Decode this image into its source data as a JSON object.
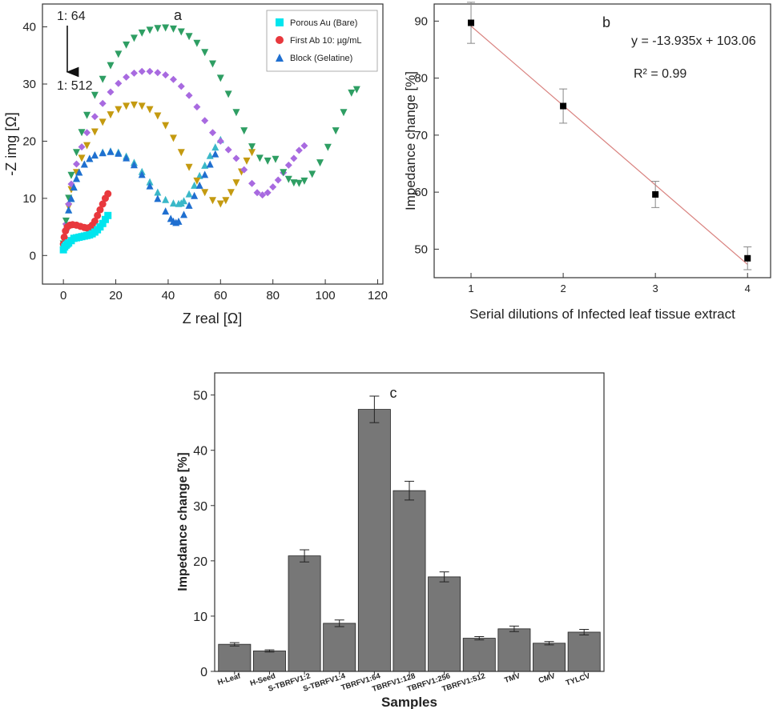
{
  "chart_data": [
    {
      "type": "scatter",
      "panel_label": "a",
      "xlabel": "Z real [Ω]",
      "ylabel": "-Z img [Ω]",
      "xlim": [
        -8,
        122
      ],
      "ylim": [
        -5,
        44
      ],
      "xticks": [
        0,
        20,
        40,
        60,
        80,
        100,
        120
      ],
      "yticks": [
        0,
        10,
        20,
        30,
        40
      ],
      "arrow_label_top": "1: 64",
      "arrow_label_bottom": "1: 512",
      "legend": [
        "Porous Au (Bare)",
        "First Ab 10: µg/mL",
        "Block (Gelatine)"
      ],
      "colors": {
        "bare": "#00e5ee",
        "ab": "#e8383d",
        "block": "#1f6fd0",
        "d64": "#2e9e63",
        "d128": "#a86ae0",
        "d256": "#c49a10",
        "d512": "#3ab8c8"
      },
      "series": [
        {
          "name": "Porous Au (Bare)",
          "marker": "square",
          "color": "#00e5ee",
          "x": [
            0,
            0.5,
            1,
            1.5,
            2,
            3,
            4,
            5,
            6,
            7,
            8,
            9,
            10,
            11,
            12,
            13,
            14,
            15,
            16,
            17
          ],
          "y": [
            1,
            1.5,
            1.8,
            2,
            2.2,
            2.6,
            3,
            3.1,
            3.2,
            3.3,
            3.4,
            3.5,
            3.6,
            3.8,
            4.1,
            4.5,
            5,
            5.6,
            6.3,
            7
          ]
        },
        {
          "name": "First Ab 10: µg/mL",
          "marker": "circle",
          "color": "#e8383d",
          "x": [
            0,
            0.3,
            0.8,
            1.5,
            2.5,
            3.5,
            5,
            6.5,
            8,
            9,
            10,
            11,
            12,
            13,
            14,
            15,
            16,
            17
          ],
          "y": [
            2,
            3.2,
            4.3,
            5,
            5.3,
            5.4,
            5.3,
            5.1,
            4.9,
            4.8,
            4.9,
            5.3,
            6,
            7,
            8,
            9,
            10,
            10.8
          ]
        },
        {
          "name": "Block (Gelatine)",
          "marker": "triangle-up",
          "color": "#1f6fd0",
          "x": [
            0,
            1,
            2,
            3,
            4,
            5,
            6,
            8,
            10,
            12,
            15,
            18,
            21,
            24,
            27,
            30,
            33,
            36,
            39,
            41,
            42,
            43,
            44,
            46,
            48,
            50,
            52,
            54,
            56,
            58
          ],
          "y": [
            2,
            5,
            8,
            10,
            12,
            13.5,
            14.6,
            16,
            17,
            17.6,
            18,
            18.2,
            17.9,
            17.1,
            15.9,
            14.2,
            12.2,
            10,
            7.8,
            6.5,
            6,
            5.8,
            6,
            7.2,
            8.8,
            10.5,
            12.3,
            14.2,
            16,
            17.8
          ]
        },
        {
          "name": "",
          "marker": "triangle-down",
          "color": "#2e9e63",
          "x": [
            0,
            1,
            2,
            3,
            5,
            7,
            9,
            12,
            15,
            18,
            21,
            24,
            27,
            30,
            33,
            36,
            39,
            42,
            45,
            48,
            51,
            54,
            57,
            60,
            63,
            66,
            69,
            72,
            75,
            78,
            81,
            84,
            86,
            88,
            90,
            92,
            95,
            98,
            101,
            104,
            107,
            110,
            112
          ],
          "y": [
            2,
            6,
            10,
            14,
            18,
            21.5,
            24.5,
            28,
            30.8,
            33.2,
            35.2,
            36.8,
            38,
            38.9,
            39.4,
            39.7,
            39.8,
            39.6,
            39.1,
            38.3,
            37.1,
            35.5,
            33.5,
            31,
            28.2,
            25,
            21.8,
            19,
            17,
            16.5,
            16.8,
            14.5,
            13.3,
            12.7,
            12.6,
            13,
            14.2,
            16.2,
            18.9,
            21.8,
            25,
            28.4,
            29
          ]
        },
        {
          "name": "",
          "marker": "diamond",
          "color": "#a86ae0",
          "x": [
            0,
            1,
            2,
            3,
            5,
            7,
            9,
            12,
            15,
            18,
            21,
            24,
            27,
            30,
            33,
            36,
            39,
            42,
            45,
            48,
            51,
            54,
            57,
            60,
            63,
            66,
            69,
            72,
            74,
            76,
            78,
            80,
            82,
            84,
            86,
            88,
            90,
            92
          ],
          "y": [
            2,
            5.5,
            9,
            12.5,
            16,
            19,
            21.5,
            24.3,
            26.6,
            28.6,
            30.1,
            31.2,
            31.9,
            32.2,
            32.2,
            32,
            31.6,
            30.8,
            29.6,
            28,
            26,
            23.6,
            21.5,
            20,
            18.5,
            17,
            15,
            12.6,
            11,
            10.6,
            11,
            12,
            13.2,
            14.5,
            15.8,
            17,
            18.4,
            19.2
          ]
        },
        {
          "name": "",
          "marker": "triangle-down",
          "color": "#c49a10",
          "x": [
            0,
            1,
            2,
            3,
            5,
            7,
            9,
            12,
            15,
            18,
            21,
            24,
            27,
            30,
            33,
            36,
            39,
            42,
            45,
            48,
            51,
            54,
            57,
            60,
            62,
            64,
            66,
            68,
            70,
            72
          ],
          "y": [
            2,
            5,
            8.5,
            11.5,
            14.5,
            17,
            19.2,
            21.6,
            23.3,
            24.6,
            25.5,
            26.1,
            26.3,
            26.1,
            25.5,
            24.4,
            22.7,
            20.5,
            18,
            15.4,
            13,
            11,
            9.6,
            9,
            9.6,
            11,
            12.7,
            14.6,
            16.5,
            18
          ]
        },
        {
          "name": "",
          "marker": "triangle-up",
          "color": "#3ab8c8",
          "x": [
            0,
            1,
            2,
            3,
            4,
            5,
            6,
            8,
            10,
            12,
            15,
            18,
            21,
            24,
            27,
            30,
            33,
            36,
            39,
            42,
            44,
            45,
            46,
            48,
            50,
            52,
            54,
            56,
            58,
            60
          ],
          "y": [
            2,
            5,
            8,
            10,
            12,
            13.5,
            14.6,
            16,
            17,
            17.6,
            18.1,
            18.3,
            18.1,
            17.4,
            16.3,
            14.7,
            12.9,
            11.1,
            9.8,
            9.2,
            9.1,
            9.2,
            9.6,
            10.8,
            12.3,
            14,
            15.8,
            17.5,
            19,
            20.3
          ]
        }
      ]
    },
    {
      "type": "scatter",
      "panel_label": "b",
      "xlabel": "Serial dilutions of Infected leaf tissue extract",
      "ylabel": "Impedance change [%]",
      "xlim": [
        0.6,
        4.25
      ],
      "ylim": [
        45,
        93
      ],
      "xticks": [
        1,
        2,
        3,
        4
      ],
      "yticks": [
        50,
        60,
        70,
        80,
        90
      ],
      "equation": "y = -13.935x + 103.06",
      "r2": "R² = 0.99",
      "fit": {
        "slope": -13.935,
        "intercept": 103.06,
        "color": "#d9827f"
      },
      "x": [
        1,
        2,
        3,
        4
      ],
      "y": [
        89.7,
        75.1,
        59.6,
        48.4
      ],
      "err": [
        3.6,
        3.0,
        2.3,
        2.0
      ]
    },
    {
      "type": "bar",
      "panel_label": "c",
      "xlabel": "Samples",
      "ylabel": "Impedance change [%]",
      "ylim": [
        0,
        54
      ],
      "yticks": [
        0,
        10,
        20,
        30,
        40,
        50
      ],
      "bar_color": "#777777",
      "categories": [
        "H-Leaf",
        "H-Seed",
        "S-TBRFV1:2",
        "S-TBRFV1:4",
        "TBRFV1:64",
        "TBRFV1:128",
        "TBRFV1:256",
        "TBRFV1:512",
        "TMV",
        "CMV",
        "TYLCV"
      ],
      "values": [
        4.9,
        3.7,
        20.9,
        8.7,
        47.4,
        32.7,
        17.1,
        6.0,
        7.7,
        5.1,
        7.1
      ],
      "err": [
        0.3,
        0.2,
        1.1,
        0.6,
        2.4,
        1.7,
        0.9,
        0.3,
        0.5,
        0.3,
        0.5
      ]
    }
  ]
}
